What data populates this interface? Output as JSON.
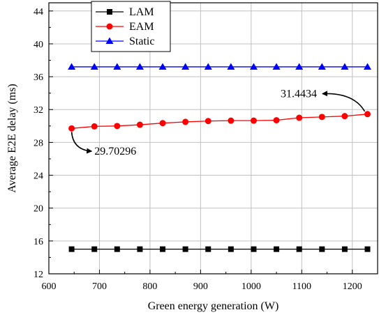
{
  "chart_data": {
    "type": "line",
    "xlabel": "Green energy generation (W)",
    "ylabel": "Average E2E delay (ms)",
    "xlim": [
      600,
      1250
    ],
    "ylim": [
      12,
      45
    ],
    "xticks": [
      600,
      700,
      800,
      900,
      1000,
      1100,
      1200
    ],
    "yticks": [
      12,
      16,
      20,
      24,
      28,
      32,
      36,
      40,
      44
    ],
    "grid": true,
    "legend_position": "top-left",
    "x": [
      645,
      690,
      735,
      780,
      825,
      870,
      915,
      960,
      1005,
      1050,
      1095,
      1140,
      1185,
      1230
    ],
    "series": [
      {
        "name": "LAM",
        "color": "#000000",
        "marker": "square",
        "values": [
          15,
          15,
          15,
          15,
          15,
          15,
          15,
          15,
          15,
          15,
          15,
          15,
          15,
          15
        ]
      },
      {
        "name": "EAM",
        "color": "#ff0000",
        "marker": "circle",
        "values": [
          29.70296,
          29.95,
          30.0,
          30.15,
          30.35,
          30.5,
          30.6,
          30.65,
          30.65,
          30.7,
          31.0,
          31.1,
          31.2,
          31.4434
        ]
      },
      {
        "name": "Static",
        "color": "#0000ff",
        "marker": "triangle",
        "values": [
          37.2,
          37.2,
          37.2,
          37.2,
          37.2,
          37.2,
          37.2,
          37.2,
          37.2,
          37.2,
          37.2,
          37.2,
          37.2,
          37.2
        ]
      }
    ],
    "annotations": [
      {
        "text": "31.4434",
        "x": 1230,
        "y": 31.4434,
        "text_x": 1130,
        "text_y": 33.5,
        "placement": "left"
      },
      {
        "text": "29.70296",
        "x": 645,
        "y": 29.70296,
        "text_x": 690,
        "text_y": 26.5,
        "placement": "right"
      }
    ]
  }
}
